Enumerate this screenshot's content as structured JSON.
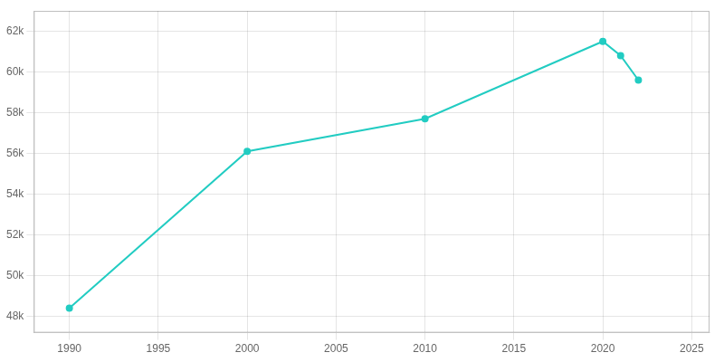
{
  "chart_data": {
    "type": "line",
    "x": [
      1990,
      2000,
      2010,
      2020,
      2021,
      2022
    ],
    "values": [
      48400,
      56100,
      57700,
      61500,
      60800,
      59600
    ],
    "color": "#22ccc2",
    "marker": "circle",
    "xlim": [
      1988,
      2026
    ],
    "ylim": [
      47200,
      63000
    ],
    "xticks": [
      1990,
      1995,
      2000,
      2005,
      2010,
      2015,
      2020,
      2025
    ],
    "yticks": [
      {
        "value": 48000,
        "label": "48k"
      },
      {
        "value": 50000,
        "label": "50k"
      },
      {
        "value": 52000,
        "label": "52k"
      },
      {
        "value": 54000,
        "label": "54k"
      },
      {
        "value": 56000,
        "label": "56k"
      },
      {
        "value": 58000,
        "label": "58k"
      },
      {
        "value": 60000,
        "label": "60k"
      },
      {
        "value": 62000,
        "label": "62k"
      }
    ],
    "grid": true
  }
}
